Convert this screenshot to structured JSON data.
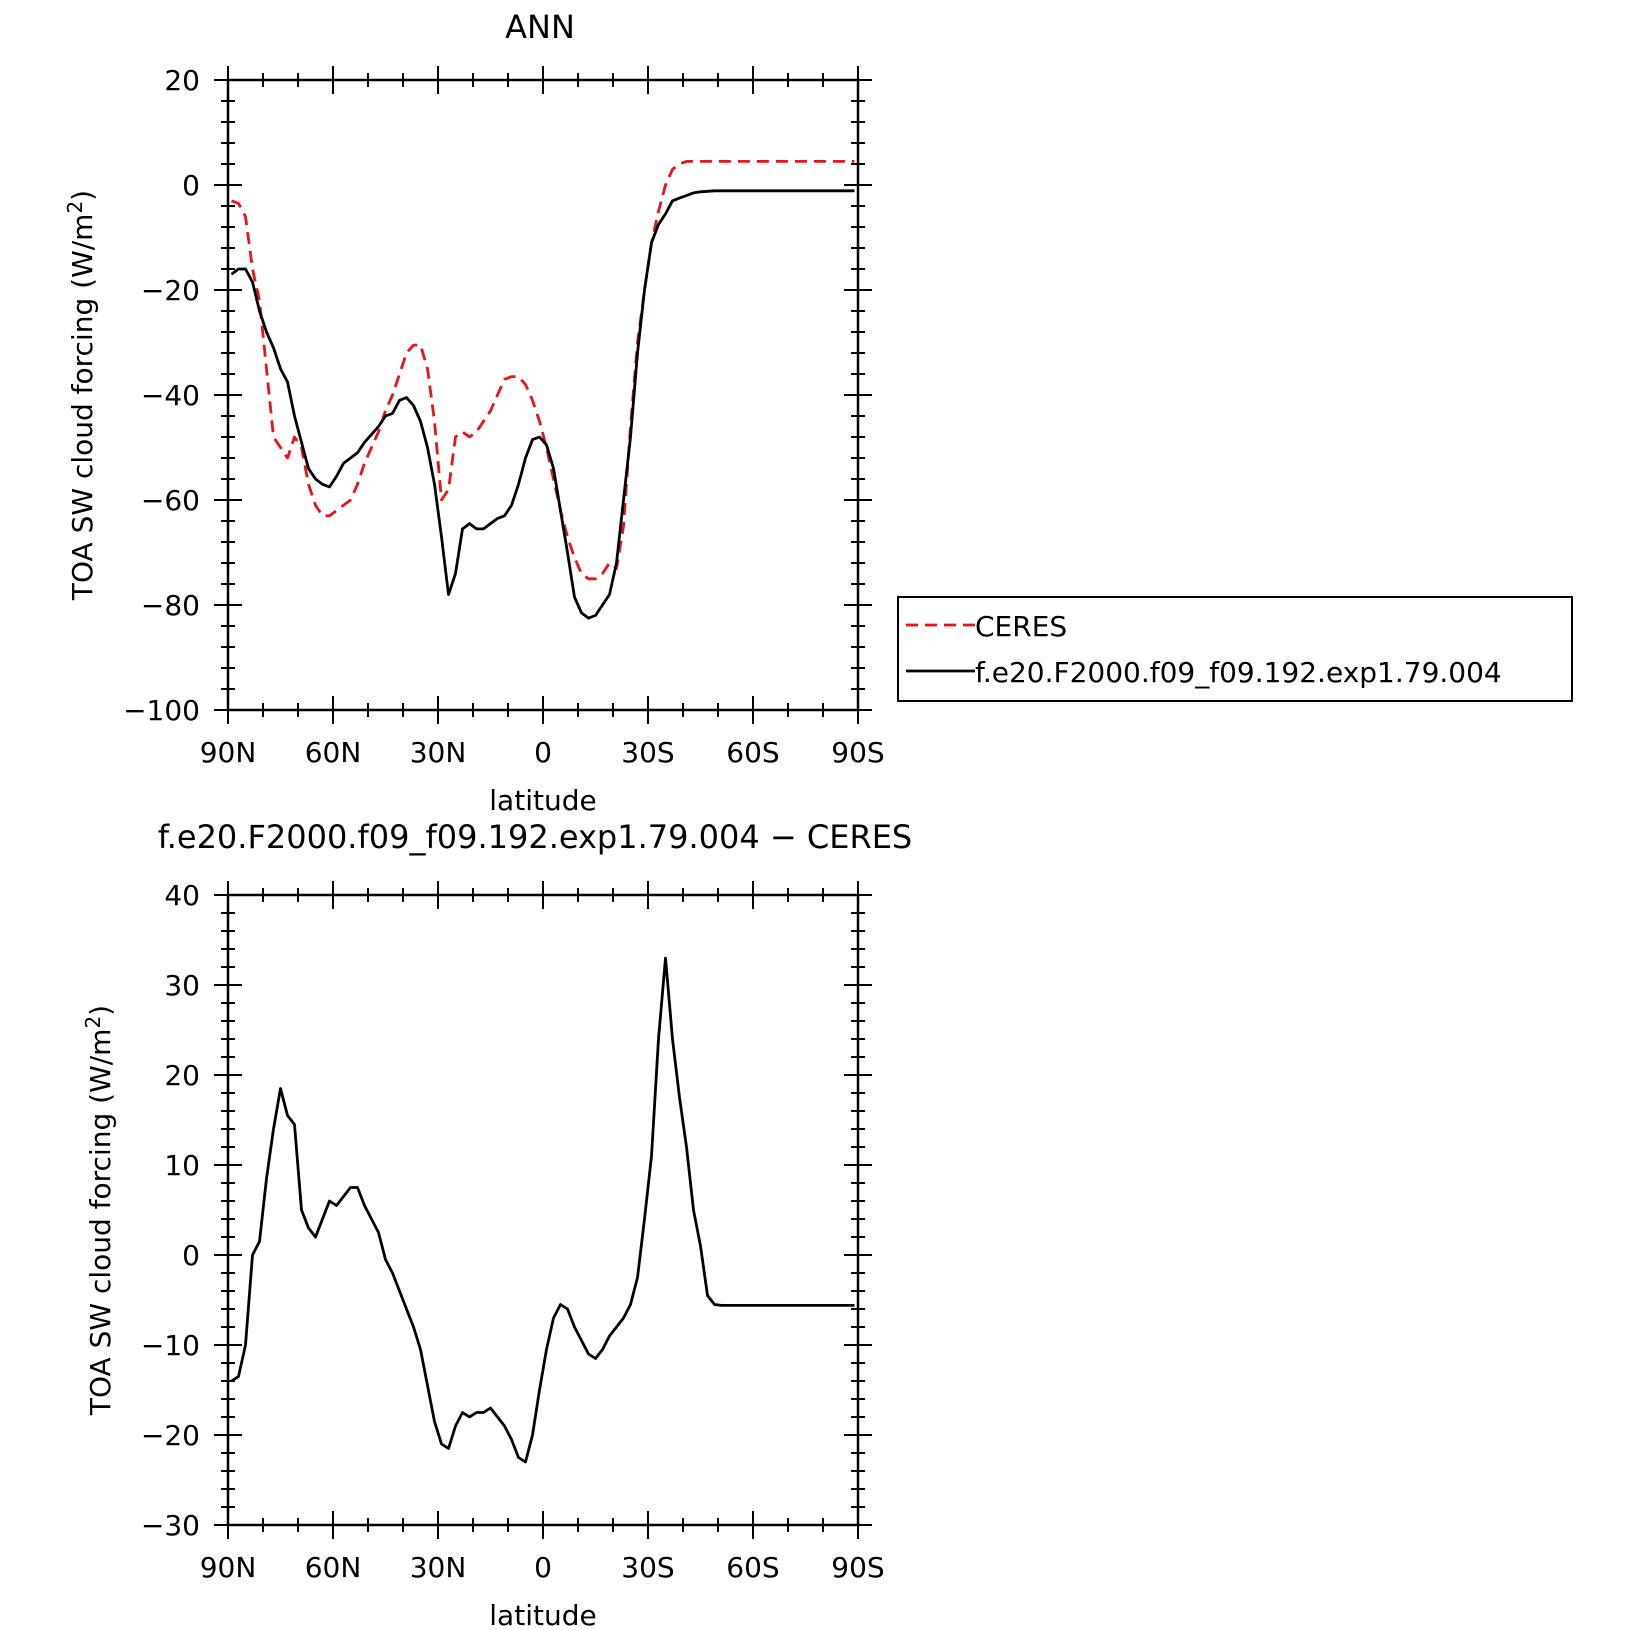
{
  "colors": {
    "ceres": "#e8141a",
    "model": "#000000"
  },
  "chart_data": [
    {
      "type": "line",
      "title": "ANN",
      "xlabel": "latitude",
      "ylabel_main": "TOA SW cloud forcing (W/m",
      "ylabel_sup": "2",
      "ylabel_close": ")",
      "xlim": [
        90,
        -90
      ],
      "ylim": [
        -100,
        20
      ],
      "x_ticks": [
        {
          "value": 90,
          "label": "90N"
        },
        {
          "value": 60,
          "label": "60N"
        },
        {
          "value": 30,
          "label": "30N"
        },
        {
          "value": 0,
          "label": "0"
        },
        {
          "value": -30,
          "label": "30S"
        },
        {
          "value": -60,
          "label": "60S"
        },
        {
          "value": -90,
          "label": "90S"
        }
      ],
      "y_ticks": [
        20,
        0,
        -20,
        -40,
        -60,
        -80,
        -100
      ],
      "y_tick_labels": [
        "20",
        "0",
        "−20",
        "−40",
        "−60",
        "−80",
        "−100"
      ],
      "legend": {
        "position": "right",
        "entries": [
          "CERES",
          "f.e20.F2000.f09_f09.192.exp1.79.004"
        ]
      },
      "series": [
        {
          "name": "CERES",
          "style": "dashed",
          "x": [
            89,
            87,
            85,
            83,
            81,
            79,
            77,
            75,
            73,
            71,
            69,
            67,
            65,
            63,
            61,
            59,
            57,
            55,
            53,
            51,
            49,
            47,
            45,
            43,
            41,
            39,
            37,
            35,
            33,
            31,
            29,
            27,
            25,
            23,
            21,
            19,
            17,
            15,
            13,
            11,
            9,
            7,
            5,
            3,
            1,
            -1,
            -3,
            -5,
            -7,
            -9,
            -11,
            -13,
            -15,
            -17,
            -19,
            -21,
            -23,
            -25,
            -27,
            -29,
            -31,
            -33,
            -35,
            -37,
            -39,
            -41,
            -43,
            -45,
            -47,
            -49,
            -51,
            -53,
            -55,
            -57,
            -59,
            -61,
            -63,
            -65,
            -67,
            -69,
            -71,
            -73,
            -75,
            -77,
            -79,
            -81,
            -83,
            -85,
            -87,
            -89
          ],
          "values": [
            -3,
            -3.5,
            -6,
            -16,
            -22,
            -35,
            -48,
            -50,
            -52,
            -48,
            -50,
            -57,
            -61,
            -63,
            -63,
            -62,
            -61,
            -60,
            -57,
            -53,
            -50,
            -47,
            -43,
            -40,
            -36,
            -32,
            -30.5,
            -30.5,
            -35,
            -45,
            -60,
            -58,
            -48,
            -47,
            -48,
            -47,
            -45,
            -43,
            -40,
            -37,
            -36.5,
            -36.5,
            -38,
            -41,
            -45,
            -50,
            -56,
            -62,
            -67,
            -71,
            -74,
            -75,
            -75,
            -74,
            -72,
            -73,
            -65,
            -46,
            -30,
            -20,
            -11,
            -5,
            0,
            3,
            4,
            4.5,
            4.5,
            4.5,
            4.5,
            4.5,
            4.5,
            4.5,
            4.5,
            4.5,
            4.5,
            4.5,
            4.5,
            4.5,
            4.5,
            4.5,
            4.5,
            4.5,
            4.5,
            4.5,
            4.5,
            4.5,
            4.5,
            4.5,
            4.5,
            4.5
          ]
        },
        {
          "name": "f.e20.F2000.f09_f09.192.exp1.79.004",
          "style": "solid",
          "x": [
            89,
            87,
            85,
            83,
            81,
            79,
            77,
            75,
            73,
            71,
            69,
            67,
            65,
            63,
            61,
            59,
            57,
            55,
            53,
            51,
            49,
            47,
            45,
            43,
            41,
            39,
            37,
            35,
            33,
            31,
            29,
            27,
            25,
            23,
            21,
            19,
            17,
            15,
            13,
            11,
            9,
            7,
            5,
            3,
            1,
            -1,
            -3,
            -5,
            -7,
            -9,
            -11,
            -13,
            -15,
            -17,
            -19,
            -21,
            -23,
            -25,
            -27,
            -29,
            -31,
            -33,
            -35,
            -37,
            -39,
            -41,
            -43,
            -45,
            -47,
            -49,
            -51,
            -53,
            -55,
            -57,
            -59,
            -61,
            -63,
            -65,
            -67,
            -69,
            -71,
            -73,
            -75,
            -77,
            -79,
            -81,
            -83,
            -85,
            -87,
            -89
          ],
          "values": [
            -17,
            -16,
            -16,
            -18.5,
            -24,
            -28,
            -31,
            -35,
            -37.5,
            -44,
            -49,
            -54,
            -56,
            -57,
            -57.5,
            -55.5,
            -53,
            -52,
            -51,
            -49,
            -47.5,
            -46,
            -44,
            -43.5,
            -41,
            -40.5,
            -42,
            -45,
            -50,
            -57,
            -67,
            -78,
            -74,
            -65.5,
            -64.5,
            -65.5,
            -65.5,
            -64.5,
            -63.5,
            -63,
            -61,
            -57,
            -52,
            -48.5,
            -48,
            -49.5,
            -54,
            -62,
            -70,
            -78.5,
            -81.5,
            -82.5,
            -82,
            -80,
            -78,
            -72,
            -60,
            -48,
            -32,
            -20,
            -11,
            -7.5,
            -5.5,
            -3,
            -2.5,
            -2,
            -1.5,
            -1.3,
            -1.2,
            -1.1,
            -1.1,
            -1.1,
            -1.1,
            -1.1,
            -1.1,
            -1.1,
            -1.1,
            -1.1,
            -1.1,
            -1.1,
            -1.1,
            -1.1,
            -1.1,
            -1.1,
            -1.1,
            -1.1,
            -1.1,
            -1.1,
            -1.1,
            -1.1
          ]
        }
      ]
    },
    {
      "type": "line",
      "title": "f.e20.F2000.f09_f09.192.exp1.79.004 − CERES",
      "xlabel": "latitude",
      "ylabel_main": "TOA SW cloud forcing (W/m",
      "ylabel_sup": "2",
      "ylabel_close": ")",
      "xlim": [
        90,
        -90
      ],
      "ylim": [
        -30,
        40
      ],
      "x_ticks": [
        {
          "value": 90,
          "label": "90N"
        },
        {
          "value": 60,
          "label": "60N"
        },
        {
          "value": 30,
          "label": "30N"
        },
        {
          "value": 0,
          "label": "0"
        },
        {
          "value": -30,
          "label": "30S"
        },
        {
          "value": -60,
          "label": "60S"
        },
        {
          "value": -90,
          "label": "90S"
        }
      ],
      "y_ticks": [
        40,
        30,
        20,
        10,
        0,
        -10,
        -20,
        -30
      ],
      "y_tick_labels": [
        "40",
        "30",
        "20",
        "10",
        "0",
        "−10",
        "−20",
        "−30"
      ],
      "series": [
        {
          "style": "solid",
          "x": [
            89,
            87,
            85,
            83,
            81,
            79,
            77,
            75,
            73,
            71,
            69,
            67,
            65,
            63,
            61,
            59,
            57,
            55,
            53,
            51,
            49,
            47,
            45,
            43,
            41,
            39,
            37,
            35,
            33,
            31,
            29,
            27,
            25,
            23,
            21,
            19,
            17,
            15,
            13,
            11,
            9,
            7,
            5,
            3,
            1,
            -1,
            -3,
            -5,
            -7,
            -9,
            -11,
            -13,
            -15,
            -17,
            -19,
            -21,
            -23,
            -25,
            -27,
            -29,
            -31,
            -33,
            -35,
            -37,
            -39,
            -41,
            -43,
            -45,
            -47,
            -49,
            -51,
            -53,
            -55,
            -57,
            -59,
            -61,
            -63,
            -65,
            -67,
            -69,
            -71,
            -73,
            -75,
            -77,
            -79,
            -81,
            -83,
            -85,
            -87,
            -89
          ],
          "values": [
            -14,
            -13.5,
            -10,
            0,
            1.5,
            8.5,
            14,
            18.5,
            15.5,
            14.5,
            5,
            3,
            2,
            4,
            6,
            5.5,
            6.5,
            7.5,
            7.5,
            5.5,
            4,
            2.5,
            -0.5,
            -2,
            -4,
            -6,
            -8,
            -10.5,
            -14.5,
            -18.5,
            -21,
            -21.5,
            -19,
            -17.5,
            -18,
            -17.5,
            -17.5,
            -17,
            -18,
            -19,
            -20.5,
            -22.5,
            -23,
            -20,
            -15,
            -10.5,
            -7,
            -5.5,
            -6,
            -8,
            -9.5,
            -11,
            -11.5,
            -10.5,
            -9,
            -8,
            -7,
            -5.5,
            -2.5,
            4,
            11,
            24,
            33,
            24,
            17.5,
            12,
            5,
            1,
            -4.5,
            -5.5,
            -5.6,
            -5.6,
            -5.6,
            -5.6,
            -5.6,
            -5.6,
            -5.6,
            -5.6,
            -5.6,
            -5.6,
            -5.6,
            -5.6,
            -5.6,
            -5.6,
            -5.6,
            -5.6,
            -5.6,
            -5.6,
            -5.6,
            -5.6
          ]
        }
      ]
    }
  ]
}
